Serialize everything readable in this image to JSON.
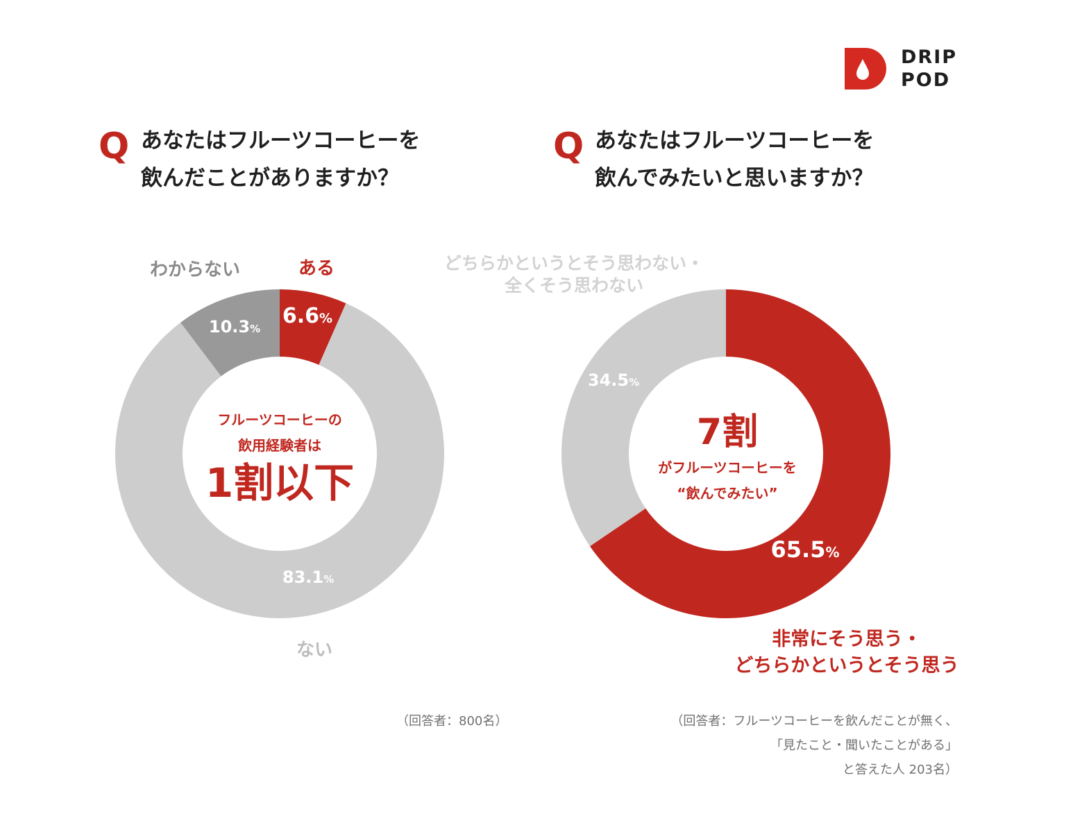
{
  "logo": {
    "line1": "DRIP",
    "line2": "POD"
  },
  "colors": {
    "accent": "#c0271f",
    "light_gray": "#cdcdcd",
    "dark_gray": "#999999",
    "text": "#1f1f1f",
    "note": "#707070"
  },
  "chart_data": [
    {
      "type": "pie",
      "question": {
        "mark": "Q",
        "line1": "あなたはフルーツコーヒーを",
        "line2": "飲んだことがありますか？"
      },
      "slices": [
        {
          "label": "ある",
          "value": 6.6,
          "value_text": "6.6",
          "color": "#c0271f"
        },
        {
          "label": "ない",
          "value": 83.1,
          "value_text": "83.1",
          "color": "#cdcdcd"
        },
        {
          "label": "わからない",
          "value": 10.3,
          "value_text": "10.3",
          "color": "#999999"
        }
      ],
      "unit": "%",
      "center": {
        "line1": "フルーツコーヒーの",
        "line2": "飲用経験者は",
        "big": "1割以下"
      },
      "note": {
        "line1": "（回答者：800名）"
      }
    },
    {
      "type": "pie",
      "question": {
        "mark": "Q",
        "line1": "あなたはフルーツコーヒーを",
        "line2": "飲んでみたいと思いますか？"
      },
      "slices": [
        {
          "label": "非常にそう思う・どちらかというとそう思う",
          "label_line1": "非常にそう思う・",
          "label_line2": "どちらかというとそう思う",
          "value": 65.5,
          "value_text": "65.5",
          "color": "#c0271f"
        },
        {
          "label": "どちらかというとそう思わない・全くそう思わない",
          "label_line1": "どちらかというとそう思わない・",
          "label_line2": "全くそう思わない",
          "value": 34.5,
          "value_text": "34.5",
          "color": "#cdcdcd"
        }
      ],
      "unit": "%",
      "center": {
        "big": "7割",
        "line1": "がフルーツコーヒーを",
        "line2": "“飲んでみたい”"
      },
      "note": {
        "line1": "（回答者：フルーツコーヒーを飲んだことが無く、",
        "line2": "「見たこと・聞いたことがある」",
        "line3": "と答えた人 203名）"
      }
    }
  ]
}
